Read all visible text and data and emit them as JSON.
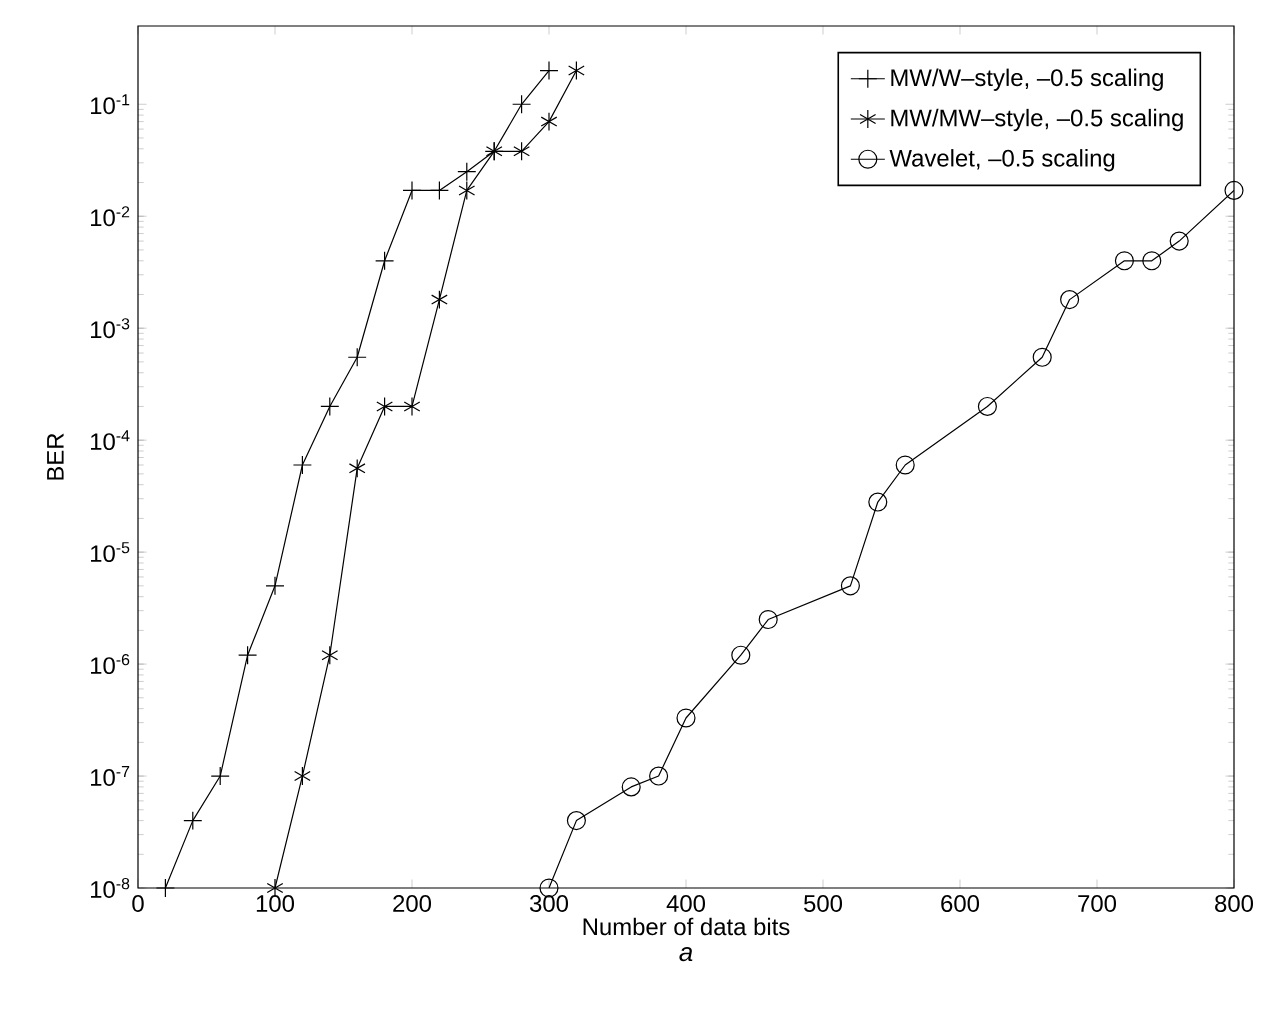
{
  "chart_data": {
    "type": "line",
    "xlabel": "Number of data bits",
    "ylabel": "BER",
    "annotations": [
      "a"
    ],
    "log": "y",
    "legend": "top right",
    "line_style": "solid",
    "xlim": [
      0,
      800
    ],
    "ylim": [
      1e-08,
      0.5
    ],
    "xticks": [
      0,
      100,
      200,
      300,
      400,
      500,
      600,
      700,
      800
    ],
    "yticks": [
      {
        "value": 1e-08,
        "label": "10$^{-8}$"
      },
      {
        "value": 1e-07,
        "label": "10$^{-7}$"
      },
      {
        "value": 1e-06,
        "label": "10$^{-6}$"
      },
      {
        "value": 1e-05,
        "label": "10$^{-5}$"
      },
      {
        "value": 0.0001,
        "label": "10$^{-4}$"
      },
      {
        "value": 0.001,
        "label": "10$^{-3}$"
      },
      {
        "value": 0.01,
        "label": "10$^{-2}$"
      },
      {
        "value": 0.1,
        "label": "10$^{-1}$"
      }
    ],
    "series": [
      {
        "name": "MW/W–style, –0.5 scaling",
        "color": "#000000",
        "marker": "cross",
        "x": [
          20,
          40,
          60,
          80,
          100,
          120,
          140,
          160,
          180,
          200,
          220,
          240,
          260,
          280,
          300
        ],
        "values": [
          1e-08,
          4e-08,
          1e-07,
          1.2e-06,
          5e-06,
          6e-05,
          0.0002,
          0.00055,
          0.004,
          0.017,
          0.017,
          0.025,
          0.038,
          0.1,
          0.2
        ]
      },
      {
        "name": "MW/MW–style, –0.5 scaling",
        "color": "#000000",
        "marker": "cross",
        "x": [
          100,
          120,
          140,
          160,
          180,
          200,
          220,
          240,
          260,
          280,
          300,
          320
        ],
        "values": [
          1e-08,
          1e-07,
          1.2e-06,
          5.6e-05,
          0.0002,
          0.0002,
          0.0018,
          0.017,
          0.038,
          0.038,
          0.07,
          0.2
        ]
      },
      {
        "name": "Wavelet, –0.5 scaling",
        "color": "#000000",
        "marker": "circle",
        "x": [
          300,
          320,
          360,
          380,
          400,
          440,
          460,
          520,
          540,
          560,
          620,
          660,
          680,
          720,
          740,
          760,
          800
        ],
        "values": [
          1e-08,
          4e-08,
          8e-08,
          1e-07,
          3.3e-07,
          1.2e-06,
          2.5e-06,
          5e-06,
          2.8e-05,
          6e-05,
          0.0002,
          0.00055,
          0.0018,
          0.004,
          0.004,
          0.006,
          0.017
        ]
      }
    ]
  }
}
